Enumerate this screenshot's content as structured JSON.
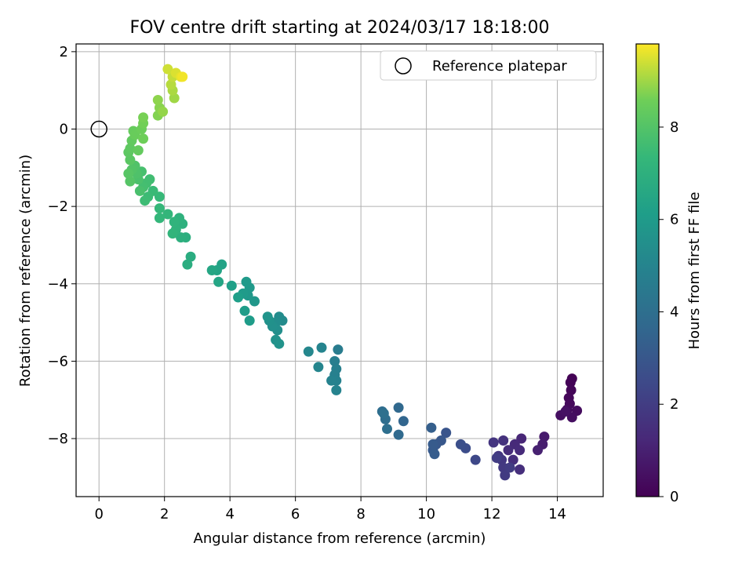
{
  "chart_data": {
    "type": "scatter",
    "title": "FOV centre drift starting at 2024/03/17 18:18:00",
    "xlabel": "Angular distance from reference (arcmin)",
    "ylabel": "Rotation from reference (arcmin)",
    "xlim": [
      -0.7,
      15.4
    ],
    "ylim": [
      -9.5,
      2.2
    ],
    "xticks": [
      0,
      2,
      4,
      6,
      8,
      10,
      12,
      14
    ],
    "yticks": [
      2,
      0,
      -2,
      -4,
      -6,
      -8
    ],
    "grid": true,
    "legend": {
      "position": "top-right",
      "label": "Reference platepar"
    },
    "reference_point": {
      "x": 0,
      "y": 0
    },
    "colorbar": {
      "label": "Hours from first FF file",
      "range": [
        0,
        9.8
      ],
      "ticks": [
        0,
        2,
        4,
        6,
        8
      ],
      "colormap": "viridis"
    },
    "points": [
      [
        14.45,
        -6.45,
        0.05
      ],
      [
        14.4,
        -6.55,
        0.1
      ],
      [
        14.42,
        -6.75,
        0.15
      ],
      [
        14.35,
        -6.95,
        0.2
      ],
      [
        14.38,
        -7.1,
        0.25
      ],
      [
        14.3,
        -7.25,
        0.3
      ],
      [
        14.6,
        -7.28,
        0.35
      ],
      [
        14.45,
        -7.45,
        0.4
      ],
      [
        14.1,
        -7.4,
        0.45
      ],
      [
        14.25,
        -7.3,
        0.5
      ],
      [
        13.6,
        -7.95,
        0.8
      ],
      [
        13.55,
        -8.15,
        0.9
      ],
      [
        13.4,
        -8.3,
        1.0
      ],
      [
        12.9,
        -8.0,
        1.2
      ],
      [
        12.7,
        -8.15,
        1.3
      ],
      [
        12.85,
        -8.3,
        1.35
      ],
      [
        12.5,
        -8.3,
        1.4
      ],
      [
        12.65,
        -8.55,
        1.45
      ],
      [
        12.85,
        -8.8,
        1.5
      ],
      [
        12.35,
        -8.05,
        1.6
      ],
      [
        12.05,
        -8.1,
        1.7
      ],
      [
        12.2,
        -8.45,
        1.75
      ],
      [
        12.3,
        -8.55,
        1.8
      ],
      [
        12.35,
        -8.75,
        1.85
      ],
      [
        12.4,
        -8.95,
        1.9
      ],
      [
        12.55,
        -8.75,
        1.95
      ],
      [
        12.15,
        -8.5,
        2.0
      ],
      [
        11.5,
        -8.55,
        2.4
      ],
      [
        11.2,
        -8.25,
        2.6
      ],
      [
        11.05,
        -8.15,
        2.7
      ],
      [
        10.6,
        -7.85,
        2.9
      ],
      [
        10.45,
        -8.05,
        3.0
      ],
      [
        10.3,
        -8.15,
        3.05
      ],
      [
        10.2,
        -8.3,
        3.1
      ],
      [
        10.2,
        -8.15,
        3.15
      ],
      [
        10.25,
        -8.4,
        3.2
      ],
      [
        10.15,
        -7.72,
        3.3
      ],
      [
        9.3,
        -7.55,
        3.6
      ],
      [
        9.15,
        -7.2,
        3.7
      ],
      [
        9.15,
        -7.9,
        3.75
      ],
      [
        8.65,
        -7.3,
        3.9
      ],
      [
        8.75,
        -7.5,
        3.95
      ],
      [
        8.8,
        -7.75,
        4.0
      ],
      [
        8.7,
        -7.35,
        4.05
      ],
      [
        7.3,
        -5.7,
        4.6
      ],
      [
        7.2,
        -6.0,
        4.7
      ],
      [
        7.25,
        -6.2,
        4.75
      ],
      [
        7.2,
        -6.35,
        4.8
      ],
      [
        7.25,
        -6.5,
        4.85
      ],
      [
        7.1,
        -6.5,
        4.9
      ],
      [
        7.25,
        -6.75,
        4.95
      ],
      [
        6.8,
        -5.65,
        5.0
      ],
      [
        6.7,
        -6.15,
        5.05
      ],
      [
        6.4,
        -5.75,
        5.1
      ],
      [
        5.6,
        -4.95,
        5.3
      ],
      [
        5.5,
        -4.85,
        5.35
      ],
      [
        5.4,
        -5.0,
        5.4
      ],
      [
        5.45,
        -5.2,
        5.45
      ],
      [
        5.3,
        -5.1,
        5.5
      ],
      [
        5.2,
        -4.95,
        5.55
      ],
      [
        5.4,
        -5.45,
        5.6
      ],
      [
        5.5,
        -5.55,
        5.65
      ],
      [
        5.15,
        -4.85,
        5.7
      ],
      [
        4.75,
        -4.45,
        5.8
      ],
      [
        4.55,
        -4.3,
        5.85
      ],
      [
        4.6,
        -4.1,
        5.9
      ],
      [
        4.5,
        -3.95,
        5.95
      ],
      [
        4.4,
        -4.25,
        6.0
      ],
      [
        4.6,
        -4.95,
        6.05
      ],
      [
        4.45,
        -4.7,
        6.1
      ],
      [
        4.25,
        -4.35,
        6.15
      ],
      [
        4.05,
        -4.05,
        6.2
      ],
      [
        3.75,
        -3.5,
        6.35
      ],
      [
        3.6,
        -3.65,
        6.4
      ],
      [
        3.65,
        -3.95,
        6.45
      ],
      [
        3.45,
        -3.65,
        6.5
      ],
      [
        2.8,
        -3.3,
        6.8
      ],
      [
        2.7,
        -3.5,
        6.85
      ],
      [
        2.65,
        -2.8,
        6.9
      ],
      [
        2.5,
        -2.8,
        6.95
      ],
      [
        2.55,
        -2.45,
        7.0
      ],
      [
        2.45,
        -2.3,
        7.05
      ],
      [
        2.35,
        -2.6,
        7.1
      ],
      [
        2.3,
        -2.4,
        7.15
      ],
      [
        2.25,
        -2.7,
        7.2
      ],
      [
        2.1,
        -2.2,
        7.25
      ],
      [
        1.85,
        -2.3,
        7.3
      ],
      [
        1.85,
        -2.05,
        7.35
      ],
      [
        1.85,
        -1.75,
        7.4
      ],
      [
        1.65,
        -1.6,
        7.45
      ],
      [
        1.5,
        -1.75,
        7.5
      ],
      [
        1.4,
        -1.85,
        7.55
      ],
      [
        1.55,
        -1.3,
        7.6
      ],
      [
        1.45,
        -1.4,
        7.65
      ],
      [
        1.35,
        -1.5,
        7.7
      ],
      [
        1.3,
        -1.1,
        7.75
      ],
      [
        1.25,
        -1.6,
        7.8
      ],
      [
        1.2,
        -1.3,
        7.85
      ],
      [
        1.15,
        -1.15,
        7.9
      ],
      [
        1.1,
        -0.95,
        7.95
      ],
      [
        1.0,
        -1.05,
        8.0
      ],
      [
        0.95,
        -1.35,
        8.05
      ],
      [
        0.9,
        -1.15,
        8.1
      ],
      [
        0.95,
        -0.8,
        8.15
      ],
      [
        0.9,
        -0.6,
        8.2
      ],
      [
        0.95,
        -0.5,
        8.25
      ],
      [
        1.0,
        -0.3,
        8.3
      ],
      [
        1.2,
        -0.55,
        8.35
      ],
      [
        1.05,
        -0.05,
        8.4
      ],
      [
        1.1,
        -0.15,
        8.45
      ],
      [
        1.3,
        0.0,
        8.5
      ],
      [
        1.35,
        -0.25,
        8.55
      ],
      [
        1.35,
        0.15,
        8.6
      ],
      [
        1.35,
        0.3,
        8.65
      ],
      [
        1.8,
        0.35,
        8.75
      ],
      [
        1.85,
        0.55,
        8.8
      ],
      [
        1.8,
        0.75,
        8.85
      ],
      [
        1.95,
        0.45,
        8.9
      ],
      [
        2.3,
        0.8,
        9.0
      ],
      [
        2.25,
        1.0,
        9.1
      ],
      [
        2.2,
        1.15,
        9.2
      ],
      [
        2.25,
        1.35,
        9.3
      ],
      [
        2.1,
        1.55,
        9.4
      ],
      [
        2.35,
        1.45,
        9.5
      ],
      [
        2.5,
        1.35,
        9.6
      ],
      [
        2.55,
        1.35,
        9.7
      ]
    ]
  }
}
